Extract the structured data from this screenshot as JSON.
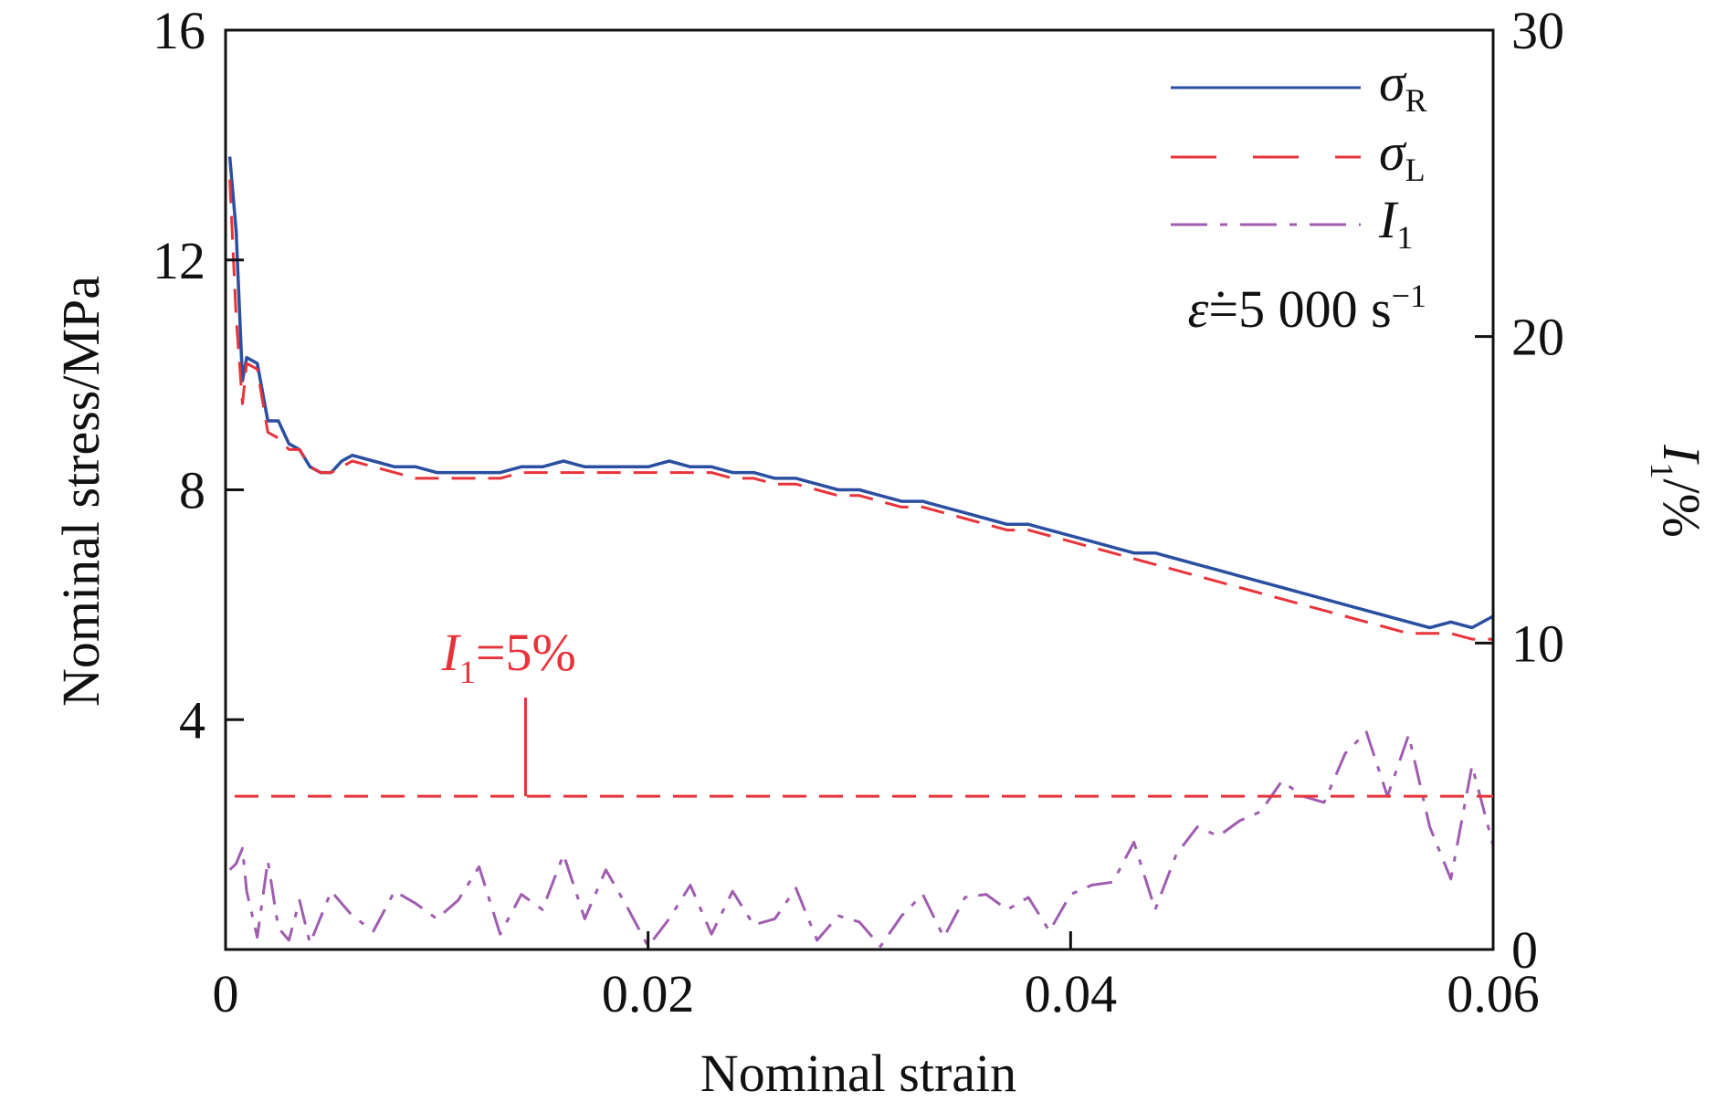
{
  "chart_data": {
    "type": "line",
    "xlabel": "Nominal strain",
    "ylabel": "Nominal stress/MPa",
    "y2label": {
      "main": "I",
      "sub": "1",
      "rest": "/%"
    },
    "xlim": [
      0,
      0.06
    ],
    "ylim": [
      0,
      16
    ],
    "y2lim": [
      0,
      30
    ],
    "x_ticks": [
      0,
      0.02,
      0.04,
      0.06
    ],
    "x_tick_labels": [
      "0",
      "0.02",
      "0.04",
      "0.06"
    ],
    "y_ticks": [
      4,
      8,
      12,
      16
    ],
    "y_tick_labels": [
      "4",
      "8",
      "12",
      "16"
    ],
    "y2_ticks": [
      0,
      10,
      20,
      30
    ],
    "y2_tick_labels": [
      "0",
      "10",
      "20",
      "30"
    ],
    "grid": false,
    "legend_position": "top-right",
    "rate_label": {
      "symbol": "ε̇",
      "text": "=5 000 s",
      "sup": "−1"
    },
    "annotation": {
      "main": "I",
      "sub": "1",
      "rest": "=5%",
      "y2_value": 5,
      "at_x": 0.0142
    },
    "series": [
      {
        "name": "σR",
        "name_main": "σ",
        "name_sub": "R",
        "axis": "left",
        "style": "solid",
        "color": "#2b4fa0",
        "x": [
          0.0002,
          0.0005,
          0.0008,
          0.001,
          0.0015,
          0.002,
          0.0025,
          0.003,
          0.0035,
          0.004,
          0.0045,
          0.005,
          0.0055,
          0.006,
          0.007,
          0.008,
          0.009,
          0.01,
          0.011,
          0.012,
          0.013,
          0.014,
          0.015,
          0.016,
          0.017,
          0.018,
          0.019,
          0.02,
          0.021,
          0.022,
          0.023,
          0.024,
          0.025,
          0.026,
          0.027,
          0.028,
          0.029,
          0.03,
          0.031,
          0.032,
          0.033,
          0.034,
          0.035,
          0.036,
          0.037,
          0.038,
          0.039,
          0.04,
          0.041,
          0.042,
          0.043,
          0.044,
          0.045,
          0.046,
          0.047,
          0.048,
          0.049,
          0.05,
          0.051,
          0.052,
          0.053,
          0.054,
          0.055,
          0.056,
          0.057,
          0.058,
          0.059,
          0.06
        ],
        "values": [
          13.8,
          12.5,
          9.9,
          10.3,
          10.2,
          9.2,
          9.2,
          8.8,
          8.7,
          8.4,
          8.3,
          8.3,
          8.5,
          8.6,
          8.5,
          8.4,
          8.4,
          8.3,
          8.3,
          8.3,
          8.3,
          8.4,
          8.4,
          8.5,
          8.4,
          8.4,
          8.4,
          8.4,
          8.5,
          8.4,
          8.4,
          8.3,
          8.3,
          8.2,
          8.2,
          8.1,
          8.0,
          8.0,
          7.9,
          7.8,
          7.8,
          7.7,
          7.6,
          7.5,
          7.4,
          7.4,
          7.3,
          7.2,
          7.1,
          7.0,
          6.9,
          6.9,
          6.8,
          6.7,
          6.6,
          6.5,
          6.4,
          6.3,
          6.2,
          6.1,
          6.0,
          5.9,
          5.8,
          5.7,
          5.6,
          5.7,
          5.6,
          5.8
        ]
      },
      {
        "name": "σL",
        "name_main": "σ",
        "name_sub": "L",
        "axis": "left",
        "style": "dashed",
        "color": "#e8333a",
        "x": [
          0.0002,
          0.0005,
          0.0008,
          0.001,
          0.0015,
          0.002,
          0.0025,
          0.003,
          0.0035,
          0.004,
          0.0045,
          0.005,
          0.0055,
          0.006,
          0.007,
          0.008,
          0.009,
          0.01,
          0.011,
          0.012,
          0.013,
          0.014,
          0.015,
          0.016,
          0.017,
          0.018,
          0.019,
          0.02,
          0.021,
          0.022,
          0.023,
          0.024,
          0.025,
          0.026,
          0.027,
          0.028,
          0.029,
          0.03,
          0.031,
          0.032,
          0.033,
          0.034,
          0.035,
          0.036,
          0.037,
          0.038,
          0.039,
          0.04,
          0.041,
          0.042,
          0.043,
          0.044,
          0.045,
          0.046,
          0.047,
          0.048,
          0.049,
          0.05,
          0.051,
          0.052,
          0.053,
          0.054,
          0.055,
          0.056,
          0.057,
          0.058,
          0.059,
          0.06
        ],
        "values": [
          13.4,
          11.0,
          9.5,
          10.2,
          10.1,
          9.0,
          8.9,
          8.7,
          8.7,
          8.4,
          8.3,
          8.3,
          8.4,
          8.5,
          8.4,
          8.3,
          8.2,
          8.2,
          8.2,
          8.2,
          8.2,
          8.3,
          8.3,
          8.3,
          8.3,
          8.3,
          8.3,
          8.3,
          8.3,
          8.3,
          8.3,
          8.2,
          8.2,
          8.1,
          8.1,
          8.0,
          7.9,
          7.9,
          7.8,
          7.7,
          7.7,
          7.6,
          7.5,
          7.4,
          7.3,
          7.3,
          7.2,
          7.1,
          7.0,
          6.9,
          6.8,
          6.7,
          6.6,
          6.5,
          6.4,
          6.3,
          6.2,
          6.1,
          6.0,
          5.9,
          5.8,
          5.7,
          5.6,
          5.5,
          5.5,
          5.5,
          5.4,
          5.4
        ]
      },
      {
        "name": "I1",
        "name_main": "I",
        "name_sub": "1",
        "axis": "right",
        "style": "dashdot",
        "color": "#a05cb0",
        "x": [
          0.0002,
          0.0005,
          0.0008,
          0.001,
          0.0015,
          0.002,
          0.0025,
          0.003,
          0.0035,
          0.004,
          0.005,
          0.006,
          0.007,
          0.008,
          0.009,
          0.01,
          0.011,
          0.012,
          0.013,
          0.014,
          0.015,
          0.016,
          0.017,
          0.018,
          0.019,
          0.02,
          0.021,
          0.022,
          0.023,
          0.024,
          0.025,
          0.026,
          0.027,
          0.028,
          0.029,
          0.03,
          0.031,
          0.032,
          0.033,
          0.034,
          0.035,
          0.036,
          0.037,
          0.038,
          0.039,
          0.04,
          0.041,
          0.042,
          0.043,
          0.044,
          0.045,
          0.046,
          0.047,
          0.048,
          0.049,
          0.05,
          0.051,
          0.052,
          0.053,
          0.054,
          0.055,
          0.056,
          0.057,
          0.058,
          0.059,
          0.06
        ],
        "values": [
          2.6,
          2.8,
          3.3,
          1.9,
          0.4,
          2.9,
          0.7,
          0.3,
          1.6,
          0.2,
          1.9,
          1.1,
          0.6,
          1.9,
          1.5,
          1.0,
          1.6,
          2.7,
          0.5,
          1.8,
          1.3,
          3.1,
          1.0,
          2.6,
          1.4,
          0.1,
          1.0,
          2.1,
          0.5,
          1.9,
          0.8,
          1.0,
          2.0,
          0.3,
          1.1,
          0.9,
          0.1,
          1.1,
          1.8,
          0.4,
          1.7,
          1.8,
          1.3,
          1.7,
          0.6,
          1.8,
          2.1,
          2.2,
          3.5,
          1.3,
          3.1,
          4.0,
          3.7,
          4.2,
          4.5,
          5.5,
          5.0,
          4.8,
          6.4,
          7.1,
          5.0,
          7.0,
          4.0,
          2.3,
          6.0,
          3.4
        ]
      }
    ]
  }
}
